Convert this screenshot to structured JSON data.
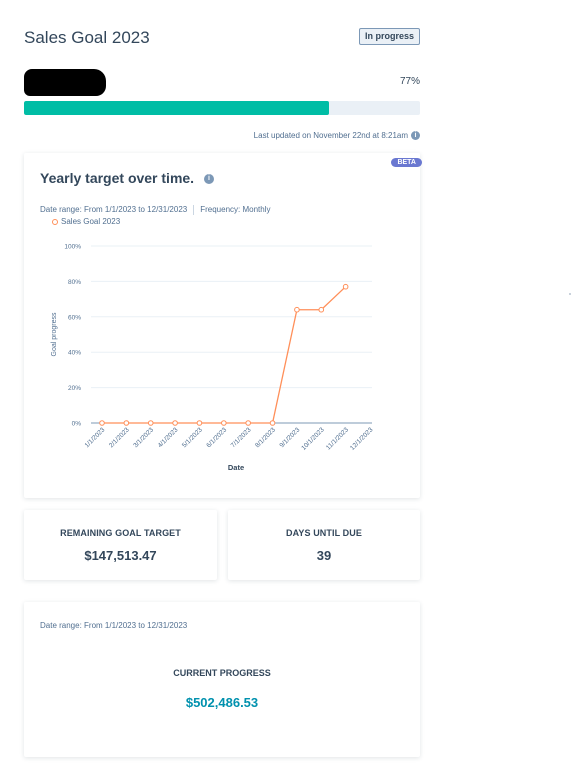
{
  "header": {
    "title": "Sales Goal 2023",
    "status_badge": "In progress"
  },
  "progress": {
    "percent_label": "77%",
    "fraction": 0.77,
    "last_updated": "Last updated on November 22nd at 8:21am",
    "fill_color": "#00bda5"
  },
  "chart_card": {
    "title": "Yearly target over time.",
    "beta": "BETA",
    "date_range": "Date range: From 1/1/2023 to 12/31/2023",
    "frequency": "Frequency: Monthly",
    "legend": "Sales Goal 2023"
  },
  "chart_data": {
    "type": "line",
    "categories": [
      "1/1/2023",
      "2/1/2023",
      "3/1/2023",
      "4/1/2023",
      "5/1/2023",
      "6/1/2023",
      "7/1/2023",
      "8/1/2023",
      "9/1/2023",
      "10/1/2023",
      "11/1/2023",
      "12/1/2023"
    ],
    "series": [
      {
        "name": "Sales Goal 2023",
        "values": [
          0,
          0,
          0,
          0,
          0,
          0,
          0,
          0,
          64,
          64,
          77,
          null
        ],
        "color": "#ff8f59"
      }
    ],
    "y_ticks": [
      "0%",
      "20%",
      "40%",
      "60%",
      "80%",
      "100%"
    ],
    "ylim": [
      0,
      100
    ],
    "xlabel": "Date",
    "ylabel": "Goal progress",
    "grid": true
  },
  "stats": {
    "remaining_label": "REMAINING GOAL TARGET",
    "remaining_value": "$147,513.47",
    "days_label": "DAYS UNTIL DUE",
    "days_value": "39"
  },
  "current": {
    "date_range": "Date range: From 1/1/2023 to 12/31/2023",
    "label": "CURRENT PROGRESS",
    "value": "$502,486.53"
  }
}
